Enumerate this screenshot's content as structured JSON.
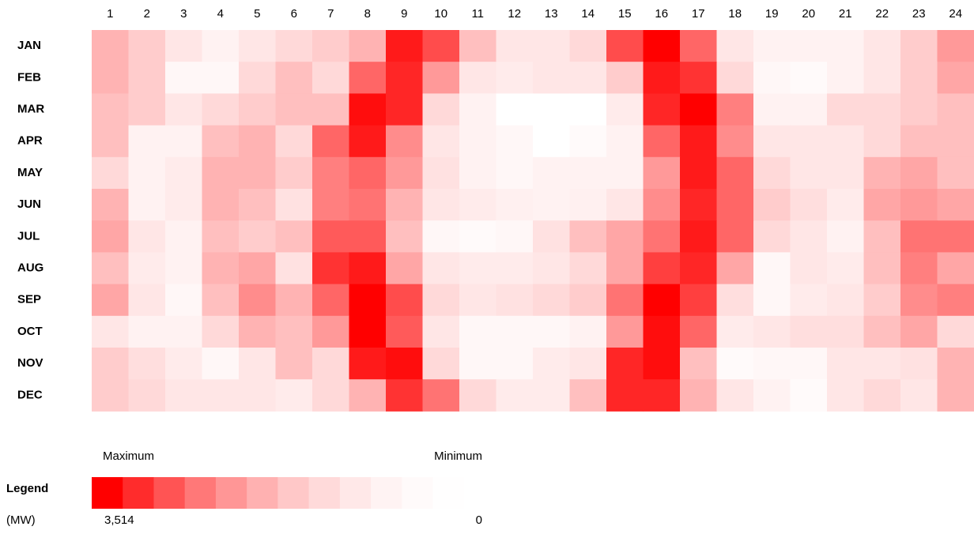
{
  "chart_data": {
    "type": "heatmap",
    "x": [
      1,
      2,
      3,
      4,
      5,
      6,
      7,
      8,
      9,
      10,
      11,
      12,
      13,
      14,
      15,
      16,
      17,
      18,
      19,
      20,
      21,
      22,
      23,
      24
    ],
    "categories": [
      "JAN",
      "FEB",
      "MAR",
      "APR",
      "MAY",
      "JUN",
      "JUL",
      "AUG",
      "SEP",
      "OCT",
      "NOV",
      "DEC"
    ],
    "values": [
      [
        1050,
        700,
        350,
        180,
        350,
        530,
        700,
        1050,
        3160,
        2460,
        880,
        350,
        350,
        530,
        2460,
        3514,
        2110,
        350,
        180,
        180,
        180,
        350,
        700,
        1410
      ],
      [
        1050,
        700,
        110,
        110,
        530,
        880,
        530,
        2110,
        2990,
        1410,
        350,
        280,
        350,
        350,
        700,
        3160,
        2810,
        530,
        110,
        70,
        180,
        350,
        700,
        1230
      ],
      [
        880,
        700,
        350,
        530,
        700,
        880,
        880,
        3340,
        2990,
        530,
        180,
        0,
        0,
        0,
        280,
        2990,
        3514,
        1760,
        180,
        180,
        530,
        530,
        700,
        880
      ],
      [
        880,
        180,
        180,
        880,
        1050,
        530,
        2110,
        3160,
        1580,
        350,
        180,
        110,
        0,
        70,
        180,
        2110,
        3160,
        1580,
        350,
        350,
        350,
        530,
        880,
        880
      ],
      [
        530,
        180,
        280,
        1050,
        1050,
        700,
        1760,
        2110,
        1410,
        420,
        180,
        110,
        180,
        180,
        180,
        1410,
        3160,
        2110,
        530,
        350,
        350,
        1050,
        1230,
        880
      ],
      [
        1050,
        180,
        280,
        1050,
        880,
        420,
        1760,
        1930,
        1050,
        350,
        280,
        210,
        180,
        210,
        350,
        1580,
        2990,
        2110,
        700,
        460,
        280,
        1230,
        1410,
        1230
      ],
      [
        1230,
        350,
        180,
        880,
        700,
        880,
        2280,
        2280,
        880,
        110,
        70,
        110,
        420,
        880,
        1230,
        1930,
        3160,
        2110,
        530,
        350,
        180,
        880,
        1930,
        1930
      ],
      [
        880,
        280,
        180,
        1050,
        1230,
        420,
        2810,
        3160,
        1230,
        350,
        280,
        280,
        350,
        530,
        1230,
        2640,
        2990,
        1230,
        110,
        350,
        280,
        880,
        1760,
        1230
      ],
      [
        1230,
        350,
        110,
        880,
        1580,
        1050,
        2110,
        3514,
        2460,
        530,
        350,
        420,
        530,
        700,
        1930,
        3514,
        2640,
        460,
        110,
        280,
        350,
        700,
        1580,
        1760
      ],
      [
        350,
        180,
        180,
        530,
        1050,
        880,
        1410,
        3514,
        2280,
        350,
        110,
        110,
        110,
        180,
        1410,
        3340,
        2110,
        280,
        350,
        460,
        460,
        880,
        1230,
        530
      ],
      [
        700,
        460,
        280,
        110,
        350,
        880,
        530,
        3160,
        3340,
        530,
        110,
        110,
        280,
        350,
        2990,
        3340,
        880,
        70,
        110,
        110,
        350,
        350,
        420,
        1050
      ],
      [
        700,
        530,
        350,
        350,
        350,
        280,
        530,
        1050,
        2810,
        1930,
        530,
        280,
        280,
        880,
        2990,
        2990,
        1050,
        350,
        180,
        70,
        350,
        530,
        350,
        1050
      ]
    ],
    "color_scale": {
      "min": 0,
      "max": {
        "value": 3514,
        "label": "3,514"
      },
      "min_color": "#ffffff",
      "max_color": "#ff0000",
      "max_text": "Maximum",
      "min_text": "Minimum",
      "title": "Legend",
      "unit": "(MW)"
    }
  }
}
